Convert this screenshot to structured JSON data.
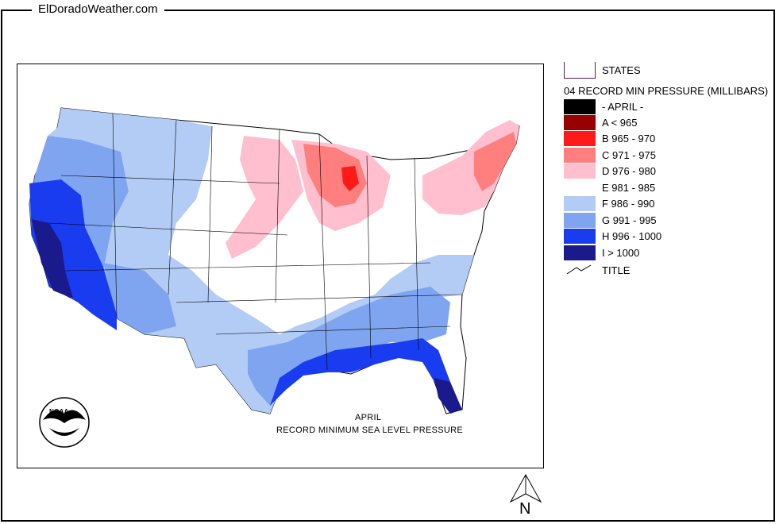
{
  "site": {
    "title": "ElDoradoWeather.com"
  },
  "map": {
    "caption_month": "APRIL",
    "caption_subtitle": "RECORD  MINIMUM SEA LEVEL PRESSURE",
    "logo_text": "NOAA",
    "north_label": "N"
  },
  "legend": {
    "states_label": "STATES",
    "heading": "04 RECORD MIN PRESSURE (MILLIBARS)",
    "month_label": "- APRIL -",
    "title_label": "TITLE",
    "classes": [
      {
        "label": "A < 965",
        "color": "#990000"
      },
      {
        "label": "B 965 - 970",
        "color": "#ff1a1a"
      },
      {
        "label": "C 971 - 975",
        "color": "#ff7f7f"
      },
      {
        "label": "D 976 - 980",
        "color": "#ffbfcf"
      },
      {
        "label": "E 981 - 985",
        "color": "#ffffff"
      },
      {
        "label": "F 986 - 990",
        "color": "#b3ccf5"
      },
      {
        "label": "G 991 - 995",
        "color": "#7fa5f0"
      },
      {
        "label": "H 996 - 1000",
        "color": "#1a3cf0"
      },
      {
        "label": "I > 1000",
        "color": "#1a1a8c"
      }
    ]
  },
  "colors": {
    "month_swatch": "#000000",
    "states_outline": "#5a1a5a",
    "border": "#000000"
  }
}
